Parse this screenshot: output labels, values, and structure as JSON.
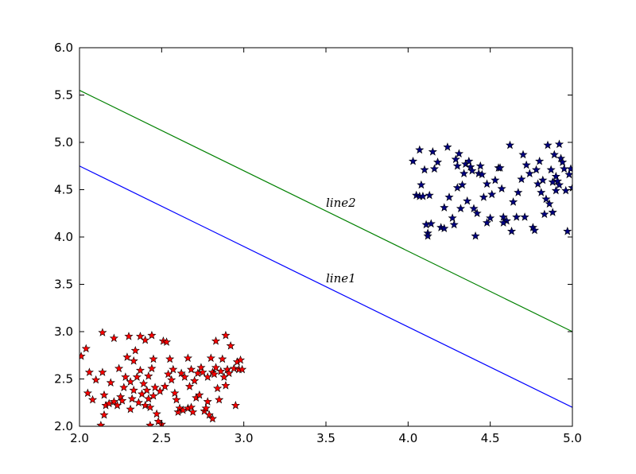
{
  "chart_data": {
    "type": "scatter",
    "title": "",
    "xlabel": "",
    "ylabel": "",
    "xlim": [
      2.0,
      5.0
    ],
    "ylim": [
      2.0,
      6.0
    ],
    "grid": false,
    "x_ticks": [
      "2.0",
      "2.5",
      "3.0",
      "3.5",
      "4.0",
      "4.5",
      "5.0"
    ],
    "y_ticks": [
      "2.0",
      "2.5",
      "3.0",
      "3.5",
      "4.0",
      "4.5",
      "5.0",
      "5.5",
      "6.0"
    ],
    "lines": [
      {
        "label": "line1",
        "color": "#0000ff",
        "x": [
          2.0,
          5.0
        ],
        "y": [
          4.75,
          2.2
        ],
        "label_at": [
          3.5,
          3.52
        ]
      },
      {
        "label": "line2",
        "color": "#008000",
        "x": [
          2.0,
          5.0
        ],
        "y": [
          5.55,
          3.0
        ],
        "label_at": [
          3.5,
          4.32
        ]
      }
    ],
    "series": [
      {
        "marker": "star",
        "color": "#ff0000",
        "points": [
          [
            2.01,
            2.74
          ],
          [
            2.04,
            2.82
          ],
          [
            2.05,
            2.35
          ],
          [
            2.06,
            2.57
          ],
          [
            2.08,
            2.28
          ],
          [
            2.1,
            2.49
          ],
          [
            2.14,
            2.99
          ],
          [
            2.14,
            2.57
          ],
          [
            2.15,
            2.33
          ],
          [
            2.15,
            2.12
          ],
          [
            2.16,
            2.22
          ],
          [
            2.18,
            2.24
          ],
          [
            2.19,
            2.46
          ],
          [
            2.21,
            2.26
          ],
          [
            2.21,
            2.93
          ],
          [
            2.23,
            2.22
          ],
          [
            2.24,
            2.61
          ],
          [
            2.25,
            2.31
          ],
          [
            2.26,
            2.27
          ],
          [
            2.27,
            2.41
          ],
          [
            2.28,
            2.52
          ],
          [
            2.29,
            2.73
          ],
          [
            2.3,
            2.95
          ],
          [
            2.31,
            2.47
          ],
          [
            2.31,
            2.18
          ],
          [
            2.32,
            2.29
          ],
          [
            2.33,
            2.38
          ],
          [
            2.33,
            2.69
          ],
          [
            2.34,
            2.8
          ],
          [
            2.35,
            2.52
          ],
          [
            2.36,
            2.25
          ],
          [
            2.37,
            2.95
          ],
          [
            2.37,
            2.59
          ],
          [
            2.38,
            2.34
          ],
          [
            2.39,
            2.45
          ],
          [
            2.4,
            2.91
          ],
          [
            2.4,
            2.22
          ],
          [
            2.41,
            2.38
          ],
          [
            2.42,
            2.53
          ],
          [
            2.42,
            2.29
          ],
          [
            2.43,
            2.2
          ],
          [
            2.44,
            2.96
          ],
          [
            2.44,
            2.61
          ],
          [
            2.45,
            2.32
          ],
          [
            2.45,
            2.71
          ],
          [
            2.46,
            2.41
          ],
          [
            2.47,
            2.13
          ],
          [
            2.48,
            2.05
          ],
          [
            2.49,
            2.37
          ],
          [
            2.5,
            2.02
          ],
          [
            2.51,
            2.9
          ],
          [
            2.52,
            2.42
          ],
          [
            2.53,
            2.89
          ],
          [
            2.54,
            2.55
          ],
          [
            2.55,
            2.71
          ],
          [
            2.56,
            2.49
          ],
          [
            2.57,
            2.6
          ],
          [
            2.58,
            2.35
          ],
          [
            2.59,
            2.28
          ],
          [
            2.6,
            2.15
          ],
          [
            2.61,
            2.19
          ],
          [
            2.62,
            2.56
          ],
          [
            2.63,
            2.17
          ],
          [
            2.64,
            2.52
          ],
          [
            2.66,
            2.72
          ],
          [
            2.66,
            2.19
          ],
          [
            2.67,
            2.42
          ],
          [
            2.68,
            2.2
          ],
          [
            2.68,
            2.6
          ],
          [
            2.69,
            2.15
          ],
          [
            2.7,
            2.48
          ],
          [
            2.71,
            2.3
          ],
          [
            2.72,
            2.56
          ],
          [
            2.73,
            2.33
          ],
          [
            2.74,
            2.62
          ],
          [
            2.75,
            2.57
          ],
          [
            2.76,
            2.16
          ],
          [
            2.77,
            2.19
          ],
          [
            2.78,
            2.26
          ],
          [
            2.78,
            2.52
          ],
          [
            2.79,
            2.12
          ],
          [
            2.8,
            2.72
          ],
          [
            2.81,
            2.08
          ],
          [
            2.81,
            2.57
          ],
          [
            2.82,
            2.55
          ],
          [
            2.83,
            2.9
          ],
          [
            2.83,
            2.62
          ],
          [
            2.84,
            2.4
          ],
          [
            2.85,
            2.28
          ],
          [
            2.86,
            2.58
          ],
          [
            2.87,
            2.71
          ],
          [
            2.88,
            2.52
          ],
          [
            2.89,
            2.96
          ],
          [
            2.89,
            2.43
          ],
          [
            2.9,
            2.6
          ],
          [
            2.91,
            2.56
          ],
          [
            2.92,
            2.85
          ],
          [
            2.94,
            2.61
          ],
          [
            2.95,
            2.22
          ],
          [
            2.96,
            2.68
          ],
          [
            2.97,
            2.6
          ],
          [
            2.98,
            2.7
          ],
          [
            2.99,
            2.6
          ],
          [
            2.43,
            2.01
          ],
          [
            2.13,
            2.01
          ]
        ]
      },
      {
        "marker": "star",
        "color": "#000080",
        "points": [
          [
            4.03,
            4.8
          ],
          [
            4.05,
            4.44
          ],
          [
            4.07,
            4.92
          ],
          [
            4.07,
            4.43
          ],
          [
            4.08,
            4.55
          ],
          [
            4.09,
            4.43
          ],
          [
            4.1,
            4.71
          ],
          [
            4.11,
            4.13
          ],
          [
            4.12,
            4.04
          ],
          [
            4.13,
            4.44
          ],
          [
            4.14,
            4.14
          ],
          [
            4.15,
            4.9
          ],
          [
            4.16,
            4.72
          ],
          [
            4.18,
            4.79
          ],
          [
            4.2,
            4.1
          ],
          [
            4.22,
            4.31
          ],
          [
            4.24,
            4.95
          ],
          [
            4.25,
            4.42
          ],
          [
            4.27,
            4.2
          ],
          [
            4.28,
            4.13
          ],
          [
            4.29,
            4.82
          ],
          [
            4.3,
            4.75
          ],
          [
            4.31,
            4.88
          ],
          [
            4.32,
            4.3
          ],
          [
            4.33,
            4.55
          ],
          [
            4.34,
            4.67
          ],
          [
            4.35,
            4.77
          ],
          [
            4.36,
            4.38
          ],
          [
            4.37,
            4.8
          ],
          [
            4.38,
            4.74
          ],
          [
            4.39,
            4.7
          ],
          [
            4.4,
            4.3
          ],
          [
            4.41,
            4.01
          ],
          [
            4.42,
            4.25
          ],
          [
            4.43,
            4.67
          ],
          [
            4.44,
            4.75
          ],
          [
            4.45,
            4.66
          ],
          [
            4.46,
            4.42
          ],
          [
            4.48,
            4.56
          ],
          [
            4.5,
            4.2
          ],
          [
            4.51,
            4.45
          ],
          [
            4.53,
            4.6
          ],
          [
            4.55,
            4.73
          ],
          [
            4.56,
            4.73
          ],
          [
            4.57,
            4.51
          ],
          [
            4.58,
            4.21
          ],
          [
            4.6,
            4.17
          ],
          [
            4.62,
            4.97
          ],
          [
            4.63,
            4.06
          ],
          [
            4.64,
            4.37
          ],
          [
            4.66,
            4.21
          ],
          [
            4.67,
            4.47
          ],
          [
            4.69,
            4.61
          ],
          [
            4.7,
            4.87
          ],
          [
            4.71,
            4.21
          ],
          [
            4.72,
            4.76
          ],
          [
            4.74,
            4.67
          ],
          [
            4.76,
            4.1
          ],
          [
            4.77,
            4.07
          ],
          [
            4.78,
            4.71
          ],
          [
            4.79,
            4.56
          ],
          [
            4.8,
            4.8
          ],
          [
            4.81,
            4.47
          ],
          [
            4.82,
            4.6
          ],
          [
            4.83,
            4.24
          ],
          [
            4.84,
            4.4
          ],
          [
            4.85,
            4.97
          ],
          [
            4.86,
            4.35
          ],
          [
            4.87,
            4.71
          ],
          [
            4.88,
            4.58
          ],
          [
            4.89,
            4.87
          ],
          [
            4.9,
            4.49
          ],
          [
            4.9,
            4.64
          ],
          [
            4.91,
            4.59
          ],
          [
            4.92,
            4.98
          ],
          [
            4.93,
            4.83
          ],
          [
            4.94,
            4.79
          ],
          [
            4.95,
            4.72
          ],
          [
            4.96,
            4.49
          ],
          [
            4.97,
            4.06
          ],
          [
            4.98,
            4.66
          ],
          [
            4.99,
            4.72
          ],
          [
            5.0,
            4.52
          ],
          [
            4.12,
            4.01
          ],
          [
            4.22,
            4.09
          ],
          [
            4.58,
            4.15
          ],
          [
            4.88,
            4.26
          ],
          [
            4.48,
            4.15
          ],
          [
            4.92,
            4.55
          ],
          [
            4.3,
            4.52
          ]
        ]
      }
    ]
  }
}
